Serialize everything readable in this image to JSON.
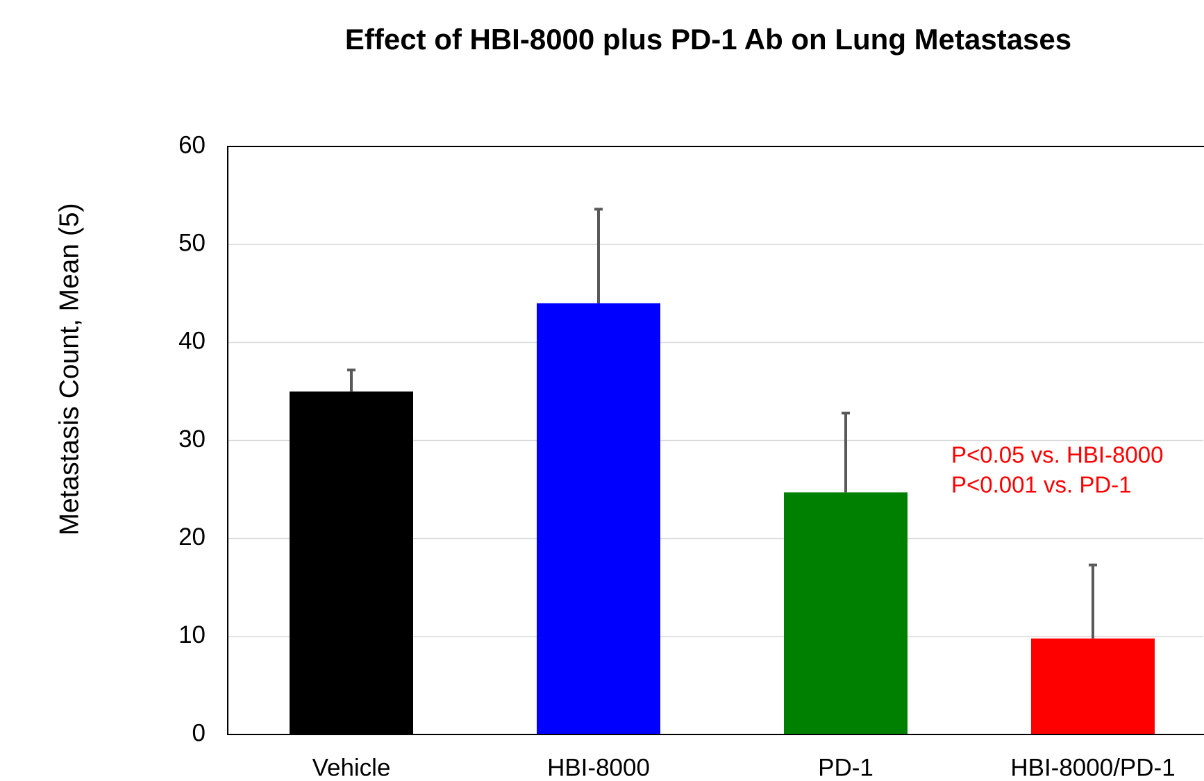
{
  "chart_data": {
    "type": "bar",
    "title": "Effect of HBI-8000 plus PD-1 Ab on Lung Metastases",
    "y_label": "Metastasis Count, Mean (5)",
    "categories": [
      "Vehicle",
      "HBI-8000",
      "PD-1",
      "HBI-8000/PD-1"
    ],
    "values": [
      35,
      44,
      24.7,
      9.8
    ],
    "errors": [
      2.2,
      9.6,
      8.1,
      7.5
    ],
    "colors": [
      "#000000",
      "#0000ff",
      "#008000",
      "#ff0000"
    ],
    "error_color": "#595959",
    "ylim": [
      0,
      60
    ],
    "yticks": [
      0,
      10,
      20,
      30,
      40,
      50,
      60
    ],
    "grid": true,
    "annotations": [
      "P<0.05 vs. HBI-8000",
      "P<0.001 vs. PD-1"
    ],
    "annotation_color": "#ff0000"
  }
}
